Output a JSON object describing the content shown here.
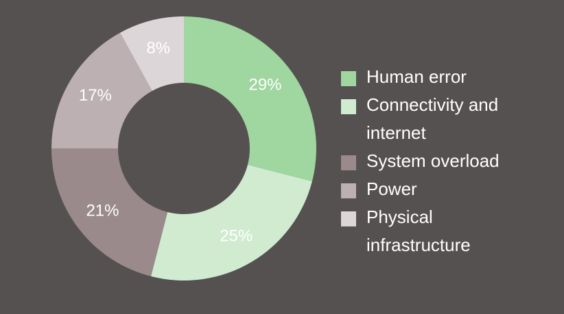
{
  "chart_data": {
    "type": "donut",
    "categories": [
      "Human error",
      "Connectivity and internet",
      "System overload",
      "Power",
      "Physical infrastructure"
    ],
    "values": [
      29,
      25,
      21,
      17,
      8
    ],
    "value_labels": [
      "29%",
      "25%",
      "21%",
      "17%",
      "8%"
    ],
    "colors": [
      "#a0d6a0",
      "#d0ebd0",
      "#9a8a8c",
      "#bcb0b2",
      "#ddd6d8"
    ],
    "legend": "right"
  }
}
